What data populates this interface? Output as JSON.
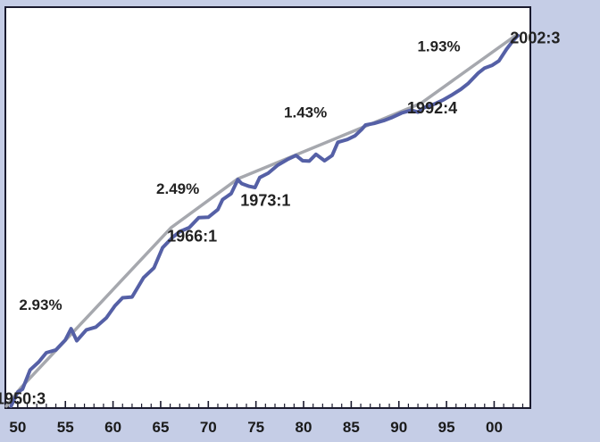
{
  "chart_data": {
    "type": "line",
    "xlim": [
      1948.7,
      2003.8
    ],
    "ylim": [
      0,
      100
    ],
    "x_ticks": [
      {
        "x": 1950,
        "label": "50"
      },
      {
        "x": 1955,
        "label": "55"
      },
      {
        "x": 1960,
        "label": "60"
      },
      {
        "x": 1965,
        "label": "65"
      },
      {
        "x": 1970,
        "label": "70"
      },
      {
        "x": 1975,
        "label": "75"
      },
      {
        "x": 1980,
        "label": "80"
      },
      {
        "x": 1985,
        "label": "85"
      },
      {
        "x": 1990,
        "label": "90"
      },
      {
        "x": 1995,
        "label": "95"
      },
      {
        "x": 2000,
        "label": "00"
      }
    ],
    "minor_tick_step": 1,
    "grid": false,
    "colors": {
      "actual": "#5560a6",
      "trend": "#a6a8ae"
    },
    "series": [
      {
        "color": "#5560a6",
        "points": [
          [
            1949.3,
            0.5
          ],
          [
            1950.0,
            4.0
          ],
          [
            1950.5,
            4.7
          ],
          [
            1951.3,
            9.5
          ],
          [
            1952.2,
            11.5
          ],
          [
            1953.0,
            13.8
          ],
          [
            1954.0,
            14.5
          ],
          [
            1955.0,
            17.0
          ],
          [
            1955.6,
            19.8
          ],
          [
            1956.2,
            16.8
          ],
          [
            1957.2,
            19.5
          ],
          [
            1958.2,
            20.2
          ],
          [
            1959.3,
            22.5
          ],
          [
            1960.2,
            25.5
          ],
          [
            1961.0,
            27.5
          ],
          [
            1962.0,
            27.7
          ],
          [
            1963.2,
            32.5
          ],
          [
            1964.3,
            35.0
          ],
          [
            1965.2,
            40.0
          ],
          [
            1966.2,
            42.5
          ],
          [
            1967.0,
            44.0
          ],
          [
            1968.0,
            45.0
          ],
          [
            1969.0,
            47.5
          ],
          [
            1970.0,
            47.6
          ],
          [
            1971.0,
            49.5
          ],
          [
            1971.5,
            52.0
          ],
          [
            1972.4,
            53.5
          ],
          [
            1973.1,
            57.0
          ],
          [
            1973.5,
            56.0
          ],
          [
            1974.3,
            55.3
          ],
          [
            1974.9,
            55.0
          ],
          [
            1975.4,
            57.5
          ],
          [
            1976.3,
            58.6
          ],
          [
            1977.3,
            60.6
          ],
          [
            1978.3,
            62.0
          ],
          [
            1979.2,
            63.0
          ],
          [
            1979.9,
            61.7
          ],
          [
            1980.6,
            61.6
          ],
          [
            1981.3,
            63.3
          ],
          [
            1982.2,
            61.7
          ],
          [
            1983.0,
            63.0
          ],
          [
            1983.6,
            66.3
          ],
          [
            1984.6,
            67.0
          ],
          [
            1985.4,
            67.9
          ],
          [
            1986.1,
            69.5
          ],
          [
            1986.5,
            70.6
          ],
          [
            1987.4,
            71.0
          ],
          [
            1988.4,
            71.7
          ],
          [
            1989.2,
            72.4
          ],
          [
            1990.3,
            73.6
          ],
          [
            1991.3,
            74.3
          ],
          [
            1992.0,
            73.8
          ],
          [
            1992.7,
            75.0
          ],
          [
            1993.7,
            75.8
          ],
          [
            1994.6,
            76.8
          ],
          [
            1995.5,
            78.0
          ],
          [
            1996.5,
            79.5
          ],
          [
            1997.3,
            81.0
          ],
          [
            1998.3,
            83.5
          ],
          [
            1999.0,
            84.8
          ],
          [
            1999.8,
            85.5
          ],
          [
            2000.5,
            86.6
          ],
          [
            2001.3,
            89.5
          ],
          [
            2002.0,
            91.7
          ],
          [
            2002.5,
            92.9
          ]
        ]
      },
      {
        "color": "#a6a8ae",
        "points": [
          [
            1948.8,
            0.5
          ],
          [
            1950.3,
            5.0
          ],
          [
            1966.1,
            45.0
          ],
          [
            1973.1,
            57.2
          ],
          [
            1992.3,
            76.0
          ],
          [
            2002.3,
            93.0
          ]
        ]
      }
    ],
    "annotations": [
      {
        "id": "pt-1950",
        "text": "1950:3",
        "x": 1950.3,
        "y": 1.0
      },
      {
        "id": "rate-1",
        "text": "2.93%",
        "x": 1952.4,
        "y": 24.5
      },
      {
        "id": "pt-1966",
        "text": "1966:1",
        "x": 1968.3,
        "y": 41.5
      },
      {
        "id": "rate-2",
        "text": "2.49%",
        "x": 1966.8,
        "y": 53.5
      },
      {
        "id": "pt-1973",
        "text": "1973:1",
        "x": 1976.0,
        "y": 50.5
      },
      {
        "id": "rate-3",
        "text": "1.43%",
        "x": 1980.2,
        "y": 72.5
      },
      {
        "id": "pt-1992",
        "text": "1992:4",
        "x": 1993.5,
        "y": 73.5
      },
      {
        "id": "rate-4",
        "text": "1.93%",
        "x": 1994.2,
        "y": 89.0
      },
      {
        "id": "pt-2002",
        "text": "2002:3",
        "x": 2004.3,
        "y": 91.0
      }
    ]
  }
}
